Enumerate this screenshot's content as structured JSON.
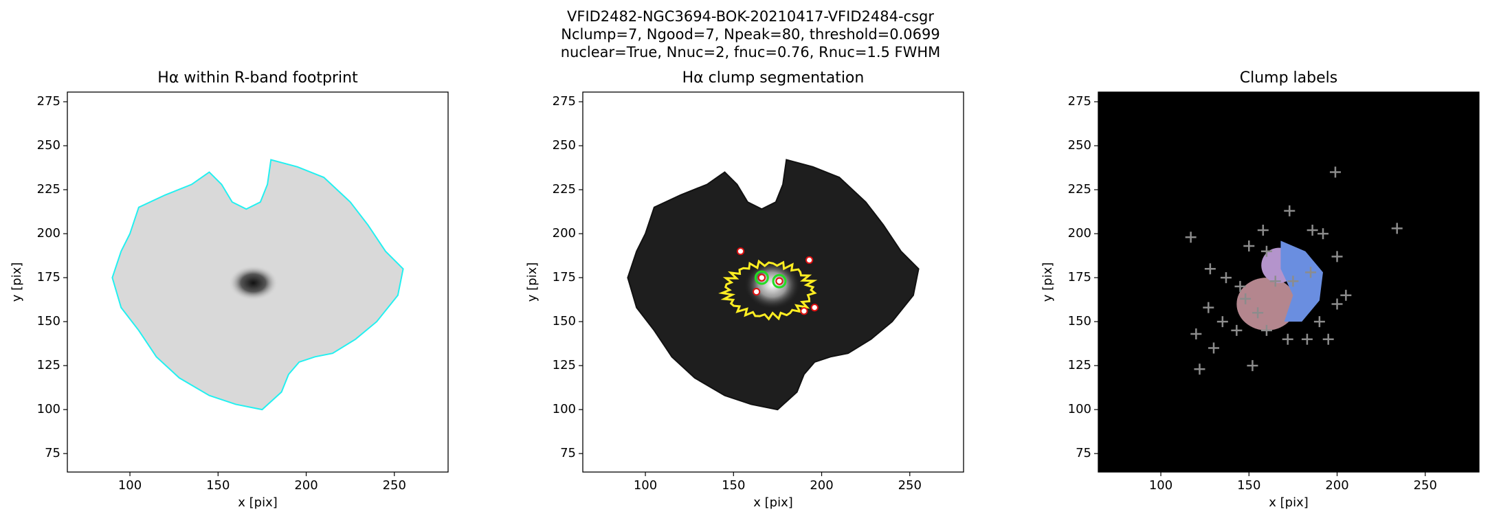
{
  "figure_title": [
    "VFID2482-NGC3694-BOK-20210417-VFID2484-csgr",
    "Nclump=7, Ngood=7, Npeak=80, threshold=0.0699",
    "nuclear=True, Nnuc=2, fnuc=0.76, Rnuc=1.5 FWHM"
  ],
  "chart_data": [
    {
      "type": "image",
      "title": "Hα within R-band footprint",
      "xlabel": "x [pix]",
      "ylabel": "y [pix]",
      "xlim": [
        64.5,
        280.5
      ],
      "ylim": [
        64.5,
        280.5
      ],
      "xticks": [
        100,
        150,
        200,
        250
      ],
      "yticks": [
        75,
        100,
        125,
        150,
        175,
        200,
        225,
        250,
        275
      ]
    },
    {
      "type": "image",
      "title": "Hα clump segmentation",
      "xlabel": "x [pix]",
      "ylabel": "y [pix]",
      "xlim": [
        64.5,
        280.5
      ],
      "ylim": [
        64.5,
        280.5
      ],
      "xticks": [
        100,
        150,
        200,
        250
      ],
      "yticks": [
        75,
        100,
        125,
        150,
        175,
        200,
        225,
        250,
        275
      ]
    },
    {
      "type": "scatter",
      "title": "Clump labels",
      "xlabel": "x [pix]",
      "ylabel": "y [pix]",
      "xlim": [
        64.5,
        280.5
      ],
      "ylim": [
        64.5,
        280.5
      ],
      "xticks": [
        100,
        150,
        200,
        250
      ],
      "yticks": [
        75,
        100,
        125,
        150,
        175,
        200,
        225,
        250,
        275
      ],
      "color": "#8c8c8c",
      "x": [
        199,
        234,
        117,
        158,
        173,
        186,
        192,
        200,
        128,
        137,
        145,
        150,
        175,
        165,
        205,
        200,
        190,
        195,
        183,
        172,
        160,
        152,
        130,
        122,
        120,
        127,
        135,
        143,
        155,
        185,
        160,
        148
      ],
      "y": [
        235,
        203,
        198,
        202,
        213,
        202,
        200,
        187,
        180,
        175,
        170,
        193,
        173,
        173,
        165,
        160,
        150,
        140,
        140,
        140,
        145,
        125,
        135,
        123,
        143,
        158,
        150,
        145,
        155,
        178,
        190,
        163
      ]
    }
  ]
}
